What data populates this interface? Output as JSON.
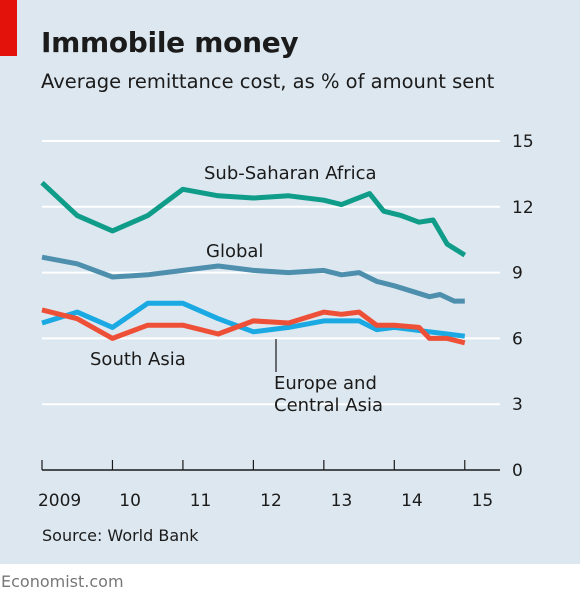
{
  "header": {
    "title": "Immobile money",
    "subtitle": "Average remittance cost, as % of amount sent"
  },
  "footer": {
    "source": "Source: World Bank",
    "brand": "Economist.com"
  },
  "colors": {
    "background": "#dce7ef",
    "accent_tag": "#e3120b",
    "sub_saharan_africa": "#0f9c88",
    "global": "#4d8fad",
    "south_asia": "#1aa9e3",
    "europe_central_asia": "#ee5037"
  },
  "chart_data": {
    "type": "line",
    "title": "Immobile money",
    "subtitle": "Average remittance cost, as % of amount sent",
    "ylim": [
      0,
      15
    ],
    "xlim": [
      2008.75,
      2015.25
    ],
    "yaxis_position": "right",
    "grid": true,
    "y_ticks": [
      0,
      3,
      6,
      9,
      12,
      15
    ],
    "x_ticks": [
      {
        "label": "2009",
        "value": 2009.0
      },
      {
        "label": "10",
        "value": 2010.0
      },
      {
        "label": "11",
        "value": 2011.0
      },
      {
        "label": "12",
        "value": 2012.0
      },
      {
        "label": "13",
        "value": 2013.0
      },
      {
        "label": "14",
        "value": 2014.0
      },
      {
        "label": "15",
        "value": 2015.0
      }
    ],
    "series": [
      {
        "name": "Sub-Saharan Africa",
        "color": "#0f9c88",
        "points": [
          [
            2008.75,
            13.1
          ],
          [
            2009.25,
            11.6
          ],
          [
            2009.75,
            10.9
          ],
          [
            2010.25,
            11.6
          ],
          [
            2010.75,
            12.8
          ],
          [
            2011.25,
            12.5
          ],
          [
            2011.75,
            12.4
          ],
          [
            2012.25,
            12.5
          ],
          [
            2012.75,
            12.3
          ],
          [
            2013.0,
            12.1
          ],
          [
            2013.4,
            12.6
          ],
          [
            2013.6,
            11.8
          ],
          [
            2013.85,
            11.6
          ],
          [
            2014.1,
            11.3
          ],
          [
            2014.3,
            11.4
          ],
          [
            2014.5,
            10.3
          ],
          [
            2014.75,
            9.8
          ]
        ]
      },
      {
        "name": "Global",
        "color": "#4d8fad",
        "points": [
          [
            2008.75,
            9.7
          ],
          [
            2009.25,
            9.4
          ],
          [
            2009.75,
            8.8
          ],
          [
            2010.25,
            8.9
          ],
          [
            2010.75,
            9.1
          ],
          [
            2011.25,
            9.3
          ],
          [
            2011.75,
            9.1
          ],
          [
            2012.25,
            9.0
          ],
          [
            2012.75,
            9.1
          ],
          [
            2013.0,
            8.9
          ],
          [
            2013.25,
            9.0
          ],
          [
            2013.5,
            8.6
          ],
          [
            2013.75,
            8.4
          ],
          [
            2014.25,
            7.9
          ],
          [
            2014.4,
            8.0
          ],
          [
            2014.6,
            7.7
          ],
          [
            2014.75,
            7.7
          ]
        ]
      },
      {
        "name": "South Asia",
        "color": "#1aa9e3",
        "points": [
          [
            2008.75,
            6.7
          ],
          [
            2009.25,
            7.2
          ],
          [
            2009.75,
            6.5
          ],
          [
            2010.25,
            7.6
          ],
          [
            2010.75,
            7.6
          ],
          [
            2011.25,
            6.9
          ],
          [
            2011.75,
            6.3
          ],
          [
            2012.25,
            6.5
          ],
          [
            2012.75,
            6.8
          ],
          [
            2013.0,
            6.8
          ],
          [
            2013.25,
            6.8
          ],
          [
            2013.5,
            6.4
          ],
          [
            2013.75,
            6.5
          ],
          [
            2014.25,
            6.3
          ],
          [
            2014.5,
            6.2
          ],
          [
            2014.75,
            6.1
          ]
        ]
      },
      {
        "name": "Europe and Central Asia",
        "color": "#ee5037",
        "points": [
          [
            2008.75,
            7.3
          ],
          [
            2009.25,
            6.9
          ],
          [
            2009.75,
            6.0
          ],
          [
            2010.25,
            6.6
          ],
          [
            2010.75,
            6.6
          ],
          [
            2011.25,
            6.2
          ],
          [
            2011.75,
            6.8
          ],
          [
            2012.25,
            6.7
          ],
          [
            2012.75,
            7.2
          ],
          [
            2013.0,
            7.1
          ],
          [
            2013.25,
            7.2
          ],
          [
            2013.5,
            6.6
          ],
          [
            2013.75,
            6.6
          ],
          [
            2014.1,
            6.5
          ],
          [
            2014.25,
            6.0
          ],
          [
            2014.5,
            6.0
          ],
          [
            2014.75,
            5.8
          ]
        ]
      }
    ],
    "annotations": [
      {
        "series": "Sub-Saharan Africa",
        "text": "Sub-Saharan Africa"
      },
      {
        "series": "Global",
        "text": "Global"
      },
      {
        "series": "South Asia",
        "text": "South Asia"
      },
      {
        "series": "Europe and Central Asia",
        "text": "Europe and\nCentral Asia"
      }
    ]
  }
}
